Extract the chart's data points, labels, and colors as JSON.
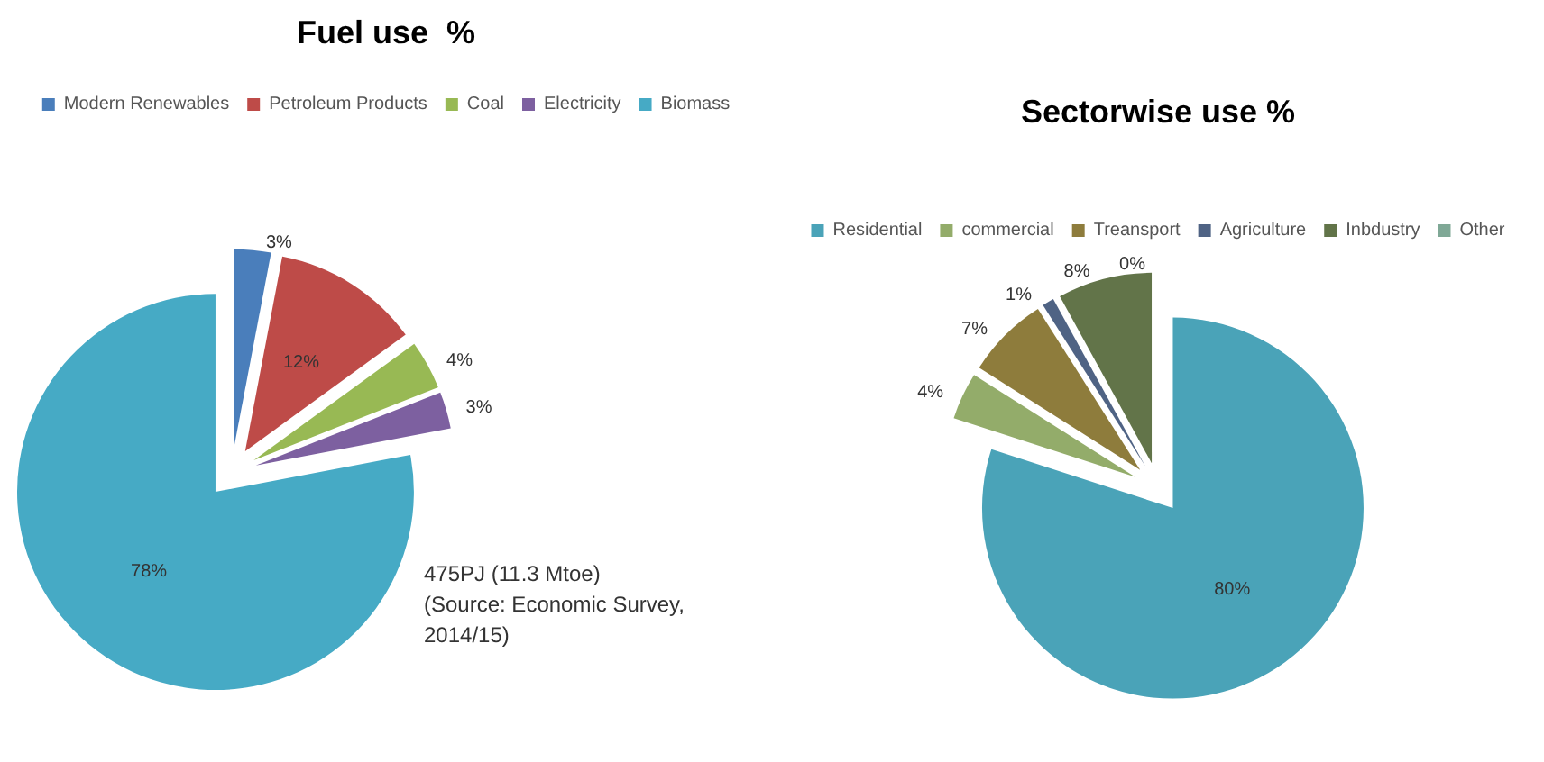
{
  "chart_data": [
    {
      "type": "pie",
      "title": "Fuel use  %",
      "categories": [
        "Modern Renewables",
        "Petroleum Products",
        "Coal",
        "Electricity",
        "Biomass"
      ],
      "values": [
        3,
        12,
        4,
        3,
        78
      ],
      "value_labels": [
        "3%",
        "12%",
        "4%",
        "3%",
        "78%"
      ],
      "colors": [
        "#4a7ebb",
        "#be4b48",
        "#98b954",
        "#7d60a0",
        "#46aac5"
      ],
      "legend": "top",
      "annotations": [
        "475PJ (11.3 Mtoe)\n(Source: Economic Survey,\n2014/15)"
      ]
    },
    {
      "type": "pie",
      "title": "Sectorwise use %",
      "categories": [
        "Residential",
        "commercial",
        "Treansport",
        "Agriculture",
        "Inbdustry",
        "Other"
      ],
      "values": [
        80,
        4,
        7,
        1,
        8,
        0
      ],
      "value_labels": [
        "80%",
        "4%",
        "7%",
        "1%",
        "8%",
        "0%"
      ],
      "colors": [
        "#4aa3b8",
        "#93ac6a",
        "#8e7c3c",
        "#4f6384",
        "#627449",
        "#7fa896"
      ],
      "legend": "top"
    }
  ]
}
